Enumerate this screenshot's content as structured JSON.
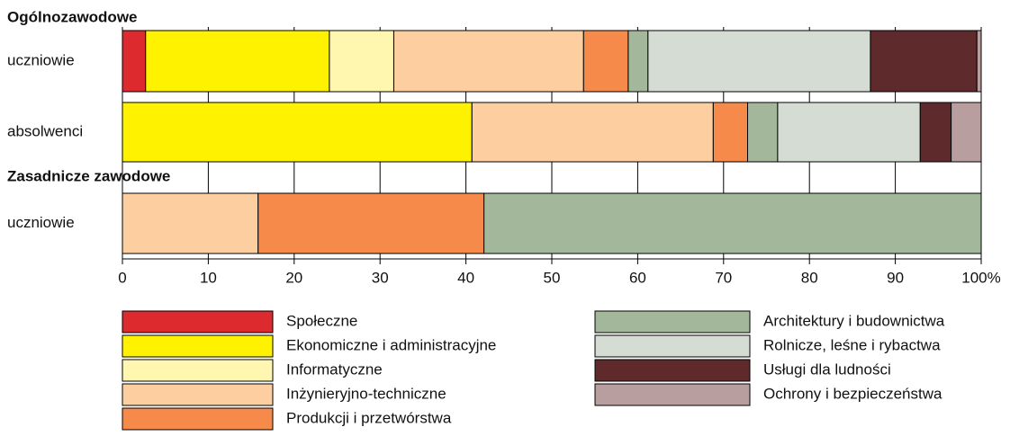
{
  "chart_data": {
    "type": "stacked-bar-horizontal",
    "categories": [
      "uczniowie",
      "absolwenci",
      "uczniowie"
    ],
    "group_labels": [
      "Ogólnozawodowe",
      null,
      "Zasadnicze zawodowe"
    ],
    "series": [
      {
        "name": "Społeczne",
        "color": "#dc2a2e",
        "values": [
          2.7,
          0,
          0
        ]
      },
      {
        "name": "Ekonomiczne i administracyjne",
        "color": "#fff200",
        "values": [
          21.4,
          40.7,
          0
        ]
      },
      {
        "name": "Informatyczne",
        "color": "#fff7b0",
        "values": [
          7.5,
          0,
          0
        ]
      },
      {
        "name": "Inżynieryjno-techniczne",
        "color": "#fdcfa0",
        "values": [
          22.1,
          28.1,
          15.8
        ]
      },
      {
        "name": "Produkcji i przetwórstwa",
        "color": "#f58a4a",
        "values": [
          5.2,
          4.0,
          26.3
        ]
      },
      {
        "name": "Architektury i budownictwa",
        "color": "#a3b89a",
        "values": [
          2.3,
          3.5,
          57.9
        ]
      },
      {
        "name": "Rolnicze, leśne i rybactwa",
        "color": "#d5dcd3",
        "values": [
          25.9,
          16.6,
          0
        ]
      },
      {
        "name": "Usługi dla ludności",
        "color": "#5f2a2c",
        "values": [
          12.4,
          3.6,
          0
        ]
      },
      {
        "name": "Ochrony i bezpieczeństwa",
        "color": "#b99e9f",
        "values": [
          0.5,
          3.5,
          0
        ]
      }
    ],
    "xlim": [
      0,
      100
    ],
    "xticks": [
      0,
      10,
      20,
      30,
      40,
      50,
      60,
      70,
      80,
      90,
      {
        "value": 100,
        "label": "100%"
      }
    ],
    "grid": true
  }
}
